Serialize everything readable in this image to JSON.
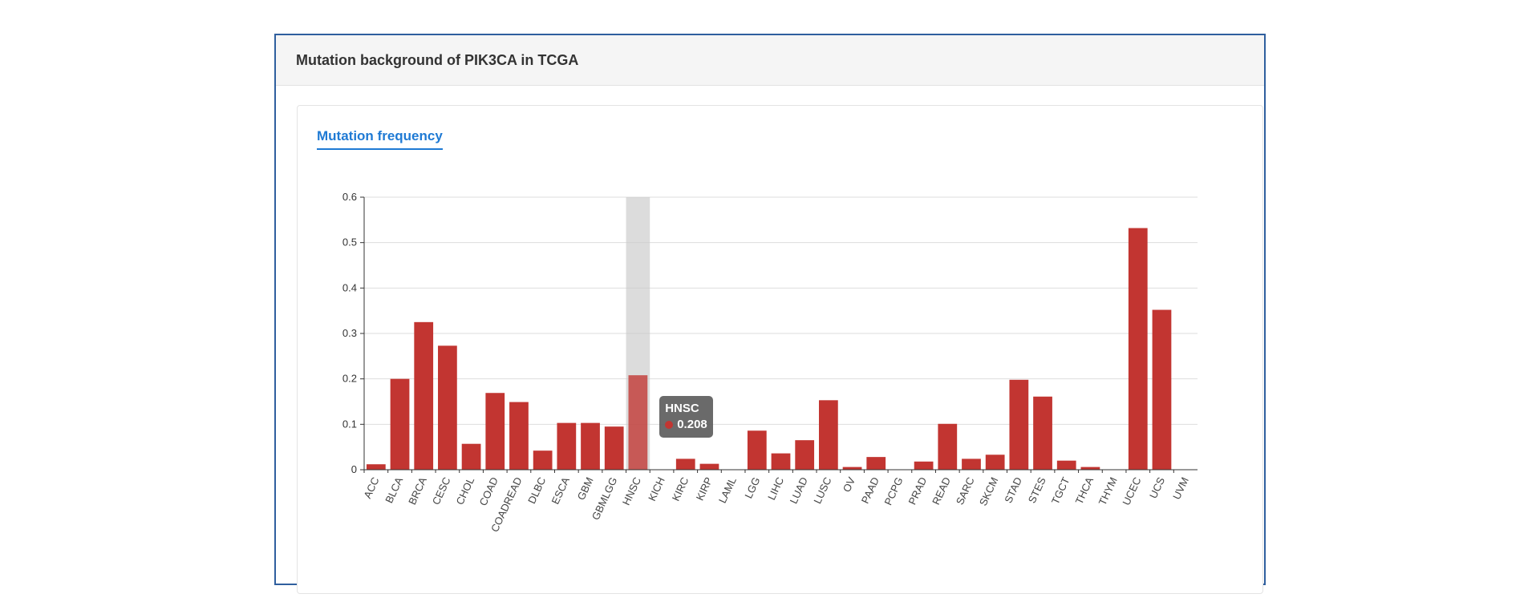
{
  "panel": {
    "title": "Mutation background of PIK3CA in TCGA"
  },
  "tab": {
    "label": "Mutation frequency"
  },
  "colors": {
    "bar": "#c23531",
    "highlight": "#c9c9c9",
    "accent": "#1f7ad4"
  },
  "tooltip": {
    "category": "HNSC",
    "value": "0.208"
  },
  "chart_data": {
    "type": "bar",
    "categories": [
      "ACC",
      "BLCA",
      "BRCA",
      "CESC",
      "CHOL",
      "COAD",
      "COADREAD",
      "DLBC",
      "ESCA",
      "GBM",
      "GBMLGG",
      "HNSC",
      "KICH",
      "KIRC",
      "KIRP",
      "LAML",
      "LGG",
      "LIHC",
      "LUAD",
      "LUSC",
      "OV",
      "PAAD",
      "PCPG",
      "PRAD",
      "READ",
      "SARC",
      "SKCM",
      "STAD",
      "STES",
      "TGCT",
      "THCA",
      "THYM",
      "UCEC",
      "UCS",
      "UVM"
    ],
    "values": [
      0.012,
      0.2,
      0.325,
      0.273,
      0.057,
      0.169,
      0.149,
      0.042,
      0.103,
      0.103,
      0.095,
      0.208,
      0,
      0.024,
      0.013,
      0,
      0.086,
      0.036,
      0.065,
      0.153,
      0.006,
      0.028,
      0,
      0.018,
      0.101,
      0.024,
      0.033,
      0.198,
      0.161,
      0.02,
      0.006,
      0,
      0.532,
      0.352,
      0
    ],
    "ylim": [
      0,
      0.6
    ],
    "yticks": [
      "0",
      "0.1",
      "0.2",
      "0.3",
      "0.4",
      "0.5",
      "0.6"
    ],
    "grid": true,
    "highlighted": "HNSC"
  }
}
